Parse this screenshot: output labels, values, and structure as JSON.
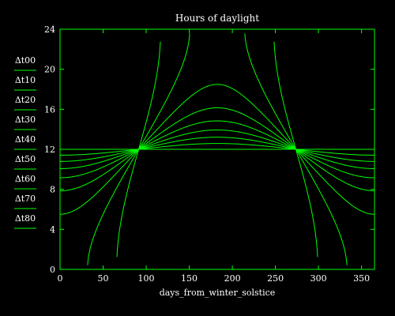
{
  "chart_data": {
    "type": "line",
    "title": "Hours of daylight",
    "xlabel": "days_from_winter_solstice",
    "ylabel": "",
    "xlim": [
      0,
      365
    ],
    "ylim": [
      0,
      24
    ],
    "x_ticks": [
      0,
      50,
      100,
      150,
      200,
      250,
      300,
      350
    ],
    "y_ticks": [
      0,
      4,
      8,
      12,
      16,
      20,
      24
    ],
    "grid": false,
    "legend_position": "left",
    "line_color": "#00ff00",
    "text_color": "#ffffff",
    "background": "#000000",
    "series": [
      {
        "name": "Δt00",
        "latitude_deg": 0
      },
      {
        "name": "Δt10",
        "latitude_deg": 10
      },
      {
        "name": "Δt20",
        "latitude_deg": 20
      },
      {
        "name": "Δt30",
        "latitude_deg": 30
      },
      {
        "name": "Δt40",
        "latitude_deg": 40
      },
      {
        "name": "Δt50",
        "latitude_deg": 50
      },
      {
        "name": "Δt60",
        "latitude_deg": 60
      },
      {
        "name": "Δt70",
        "latitude_deg": 70
      },
      {
        "name": "Δt80",
        "latitude_deg": 80
      }
    ]
  }
}
